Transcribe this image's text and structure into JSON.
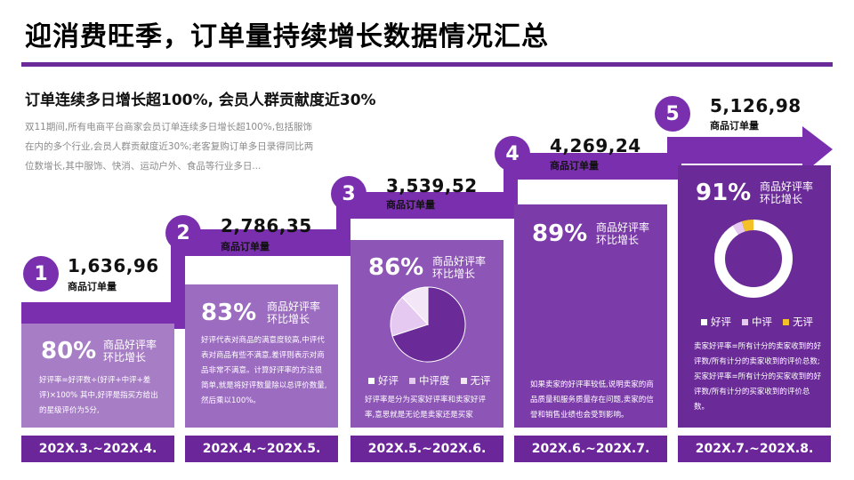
{
  "title": "迎消费旺季，订单量持续增长数据情况汇总",
  "subtitle": "订单连续多日增长超100%, 会员人群贡献度近30%",
  "description": "双11期间,所有电商平台商家会员订单连续多日增长超100%,包括服饰在内的多个行业,会员人群贡献度近30%;老客复购订单多日录得同比两位数增长,其中服饰、快消、运动户外、食品等行业多日...",
  "steps": [
    {
      "number": "1",
      "value": "1,636,96",
      "value_label": "商品订单量",
      "percent": "80%",
      "percent_label_line1": "商品好评率",
      "percent_label_line2": "环比增长",
      "text": "好评率=好评数÷(好评+中评+差评)×100% 其中,好评是指买方给出的星级评价为5分,",
      "date": "202X.3.~202X.4."
    },
    {
      "number": "2",
      "value": "2,786,35",
      "value_label": "商品订单量",
      "percent": "83%",
      "percent_label_line1": "商品好评率",
      "percent_label_line2": "环比增长",
      "text": "好评代表对商品的满意度较高,中评代表对商品有些不满意,差评则表示对商品非常不满意。计算好评率的方法很简单,就是将好评数量除以总评价数量,然后乘以100%。",
      "date": "202X.4.~202X.5."
    },
    {
      "number": "3",
      "value": "3,539,52",
      "value_label": "商品订单量",
      "percent": "86%",
      "percent_label_line1": "商品好评率",
      "percent_label_line2": "环比增长",
      "text": "好评率是分为买家好评率和卖家好评率,意思就是无论是卖家还是买家",
      "date": "202X.5.~202X.6.",
      "legend": [
        "好评",
        "中评度",
        "无评"
      ]
    },
    {
      "number": "4",
      "value": "4,269,24",
      "value_label": "商品订单量",
      "percent": "89%",
      "percent_label_line1": "商品好评率",
      "percent_label_line2": "环比增长",
      "text": "如果卖家的好评率较低,说明卖家的商品质量和服务质量存在问题,卖家的信誉和销售业绩也会受到影响。",
      "date": "202X.6.~202X.7."
    },
    {
      "number": "5",
      "value": "5,126,98",
      "value_label": "商品订单量",
      "percent": "91%",
      "percent_label_line1": "商品好评率",
      "percent_label_line2": "环比增长",
      "text": "卖家好评率=所有计分的卖家收到的好评数/所有计分的卖家收到的评价总数; 买家好评率=所有计分的买家收到的好评数/所有计分的买家收到的评价总数。",
      "date": "202X.7.~202X.8.",
      "legend": [
        "好评",
        "中评",
        "无评"
      ]
    }
  ],
  "pie": {
    "slices": [
      70,
      18,
      12
    ],
    "colors": [
      "#6a2a98",
      "#e6c9f0",
      "#f3e6f7"
    ]
  },
  "donut": {
    "slices": [
      91,
      4,
      5
    ],
    "colors": [
      "#ffffff",
      "#e6c9f0",
      "#f3c02a"
    ]
  },
  "colors": {
    "accent": "#6a2a98",
    "arrow": "#7a2fae",
    "card1": "#a77ec6",
    "card2": "#9b6cc0",
    "card3": "#8c55b6",
    "card4": "#7b3caa",
    "card5": "#6a2a98",
    "date_bar": "#6b2699",
    "yellow": "#f3c02a"
  }
}
